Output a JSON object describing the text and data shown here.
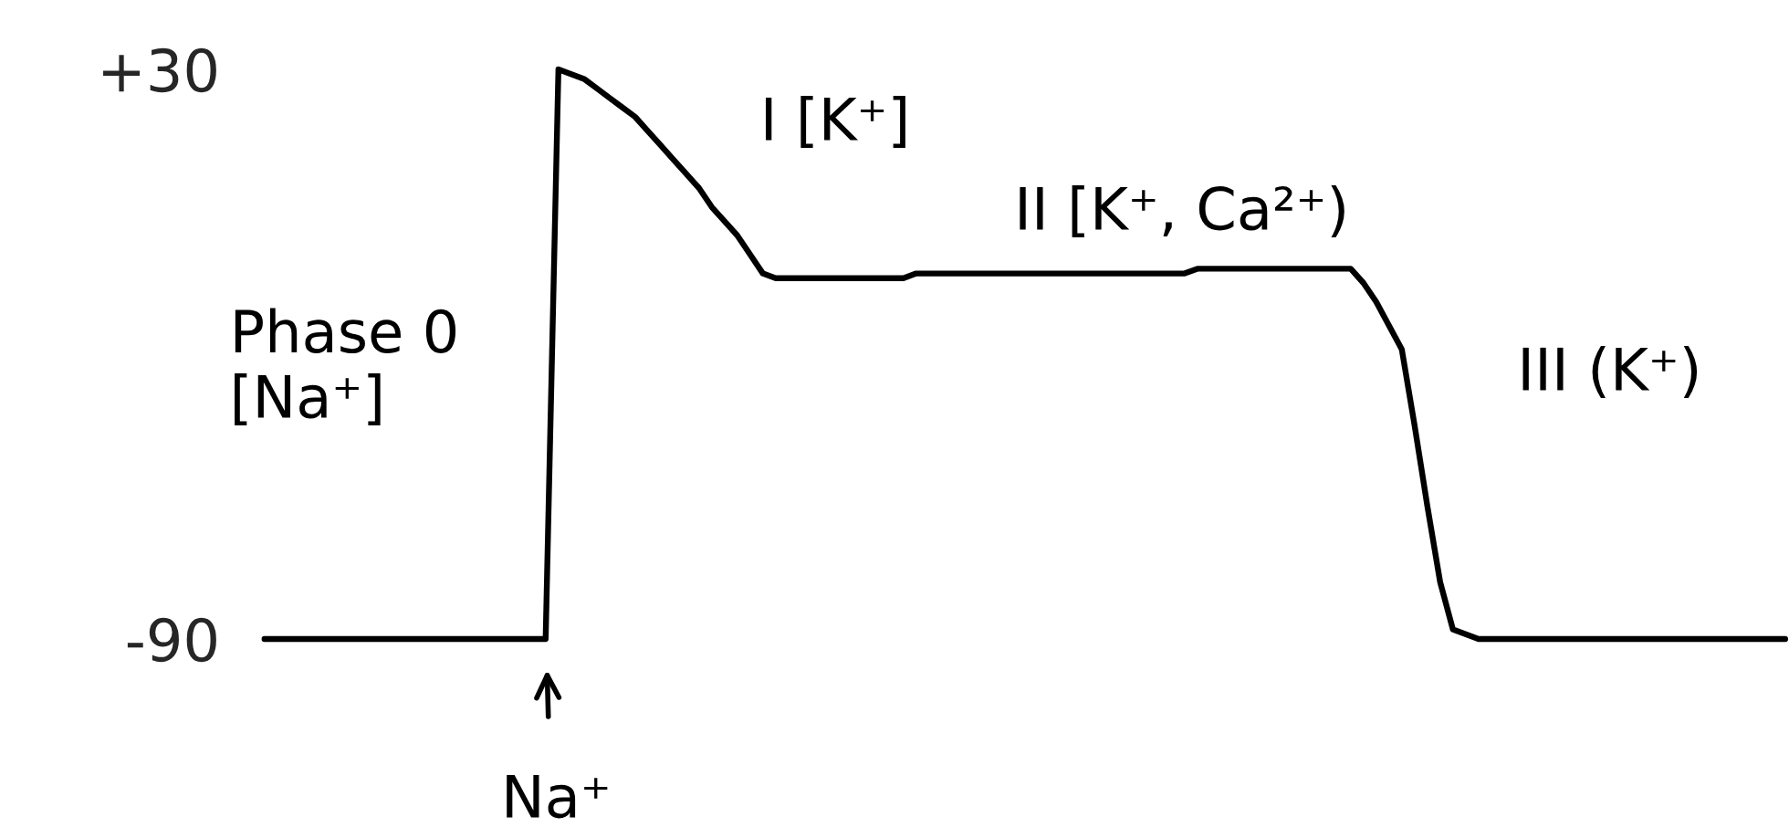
{
  "chart_data": {
    "type": "line",
    "categories": [
      null,
      null,
      null,
      null,
      null,
      null,
      null,
      null,
      null,
      null,
      null,
      null,
      null,
      null,
      null,
      null,
      null,
      null,
      null,
      null,
      null,
      null,
      null,
      null,
      null,
      null,
      null,
      null,
      null,
      null,
      null,
      null,
      null,
      null,
      null,
      null,
      null,
      null,
      null,
      null,
      null,
      null,
      null,
      null,
      null,
      null,
      null,
      null,
      null,
      null,
      null,
      null,
      null,
      null,
      null,
      null,
      null,
      null,
      null,
      null,
      null,
      null,
      null,
      null,
      null,
      null,
      null,
      null,
      null,
      null,
      null,
      null,
      null,
      null,
      null,
      null,
      null,
      null,
      null,
      null,
      null,
      null,
      null,
      null,
      null,
      null,
      null,
      null,
      null,
      null,
      null,
      null,
      null,
      null,
      null,
      null,
      null,
      null,
      null,
      null,
      null,
      null,
      null,
      null,
      null,
      null,
      null,
      null,
      null,
      null,
      null,
      null,
      null,
      null,
      null,
      null,
      null,
      null,
      null,
      null
    ],
    "series": [
      {
        "color": "#000000",
        "values": [
          -90,
          -90,
          -90,
          -90,
          -90,
          -90,
          -90,
          -90,
          -90,
          -90,
          -90,
          -90,
          -90,
          -90,
          -90,
          -90,
          -90,
          -90,
          -90,
          -90,
          -90,
          -90,
          -90,
          30,
          29,
          28,
          26,
          24,
          22,
          20,
          17,
          14,
          11,
          8,
          5,
          1,
          -2,
          -5,
          -9,
          -13,
          -14,
          -14,
          -14,
          -14,
          -14,
          -14,
          -14,
          -14,
          -14,
          -14,
          -14,
          -13,
          -13,
          -13,
          -13,
          -13,
          -13,
          -13,
          -13,
          -13,
          -13,
          -13,
          -13,
          -13,
          -13,
          -13,
          -13,
          -13,
          -13,
          -13,
          -13,
          -13,
          -13,
          -12,
          -12,
          -12,
          -12,
          -12,
          -12,
          -12,
          -12,
          -12,
          -12,
          -12,
          -12,
          -12,
          -15,
          -19,
          -24,
          -29,
          -45,
          -62,
          -78,
          -88,
          -89,
          -90,
          -90,
          -90,
          -90,
          -90,
          -90,
          -90,
          -90,
          -90,
          -90,
          -90,
          -90,
          -90,
          -90,
          -90,
          -90,
          -90,
          -90,
          -90,
          -90,
          -90,
          -90,
          -90,
          -90,
          -90
        ]
      }
    ],
    "ylim": [
      -90,
      30
    ],
    "yticks": [
      {
        "value": 30,
        "label": "+30"
      },
      {
        "value": -90,
        "label": "-90"
      }
    ],
    "tick_labels": "y",
    "grid": false,
    "marker": "none",
    "line_style": "solid",
    "annotations": [
      "Phase 0\n[Na⁺]",
      "I [K⁺]",
      "II [K⁺, Ca²⁺)",
      "III (K⁺)",
      "Na⁺"
    ]
  }
}
